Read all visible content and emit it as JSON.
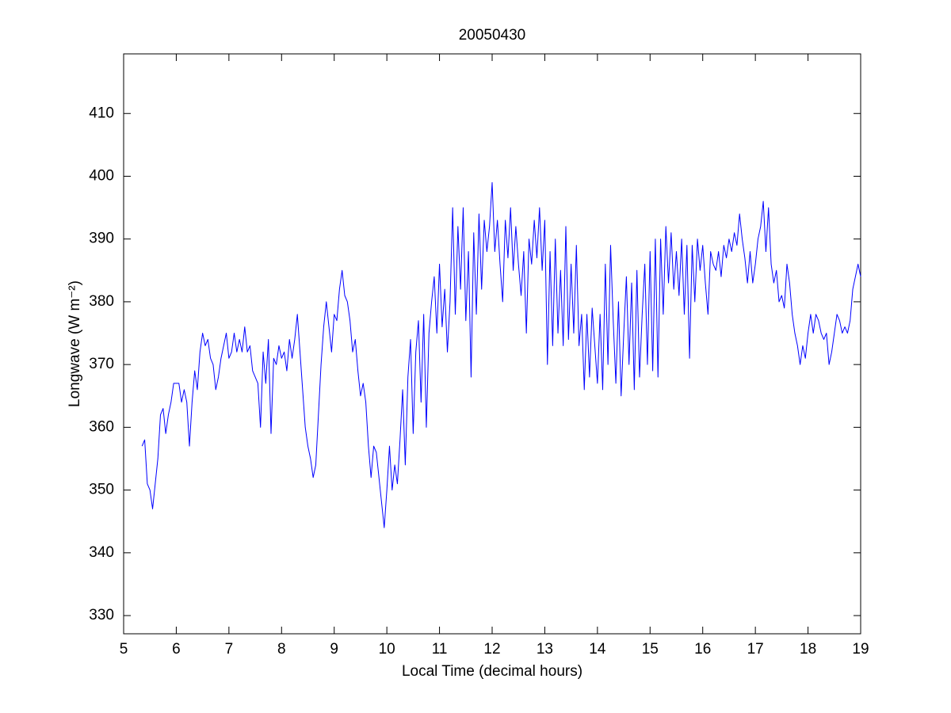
{
  "chart_data": {
    "type": "line",
    "title": "20050430",
    "xlabel": "Local Time (decimal hours)",
    "ylabel": "Longwave (W m⁻²)",
    "xlim": [
      5,
      19
    ],
    "ylim": [
      327.1,
      419.5
    ],
    "xticks": [
      5,
      6,
      7,
      8,
      9,
      10,
      11,
      12,
      13,
      14,
      15,
      16,
      17,
      18,
      19
    ],
    "yticks": [
      330,
      340,
      350,
      360,
      370,
      380,
      390,
      400,
      410
    ],
    "grid": false,
    "x": [
      5.35,
      5.4,
      5.45,
      5.5,
      5.55,
      5.6,
      5.65,
      5.7,
      5.75,
      5.8,
      5.85,
      5.9,
      5.95,
      6,
      6.05,
      6.1,
      6.15,
      6.2,
      6.25,
      6.3,
      6.35,
      6.4,
      6.45,
      6.5,
      6.55,
      6.6,
      6.65,
      6.7,
      6.75,
      6.8,
      6.85,
      6.9,
      6.95,
      7,
      7.05,
      7.1,
      7.15,
      7.2,
      7.25,
      7.3,
      7.35,
      7.4,
      7.45,
      7.5,
      7.55,
      7.6,
      7.65,
      7.7,
      7.75,
      7.8,
      7.85,
      7.9,
      7.95,
      8,
      8.05,
      8.1,
      8.15,
      8.2,
      8.25,
      8.3,
      8.35,
      8.4,
      8.45,
      8.5,
      8.55,
      8.6,
      8.65,
      8.7,
      8.75,
      8.8,
      8.85,
      8.9,
      8.95,
      9,
      9.05,
      9.1,
      9.15,
      9.2,
      9.25,
      9.3,
      9.35,
      9.4,
      9.45,
      9.5,
      9.55,
      9.6,
      9.65,
      9.7,
      9.75,
      9.8,
      9.85,
      9.9,
      9.95,
      10,
      10.05,
      10.1,
      10.15,
      10.2,
      10.25,
      10.3,
      10.35,
      10.4,
      10.45,
      10.5,
      10.55,
      10.6,
      10.65,
      10.7,
      10.75,
      10.8,
      10.85,
      10.9,
      10.95,
      11,
      11.05,
      11.1,
      11.15,
      11.2,
      11.25,
      11.3,
      11.35,
      11.4,
      11.45,
      11.5,
      11.55,
      11.6,
      11.65,
      11.7,
      11.75,
      11.8,
      11.85,
      11.9,
      11.95,
      12,
      12.05,
      12.1,
      12.15,
      12.2,
      12.25,
      12.3,
      12.35,
      12.4,
      12.45,
      12.5,
      12.55,
      12.6,
      12.65,
      12.7,
      12.75,
      12.8,
      12.85,
      12.9,
      12.95,
      13,
      13.05,
      13.1,
      13.15,
      13.2,
      13.25,
      13.3,
      13.35,
      13.4,
      13.45,
      13.5,
      13.55,
      13.6,
      13.65,
      13.7,
      13.75,
      13.8,
      13.85,
      13.9,
      13.95,
      14,
      14.05,
      14.1,
      14.15,
      14.2,
      14.25,
      14.3,
      14.35,
      14.4,
      14.45,
      14.5,
      14.55,
      14.6,
      14.65,
      14.7,
      14.75,
      14.8,
      14.85,
      14.9,
      14.95,
      15,
      15.05,
      15.1,
      15.15,
      15.2,
      15.25,
      15.3,
      15.35,
      15.4,
      15.45,
      15.5,
      15.55,
      15.6,
      15.65,
      15.7,
      15.75,
      15.8,
      15.85,
      15.9,
      15.95,
      16,
      16.05,
      16.1,
      16.15,
      16.2,
      16.25,
      16.3,
      16.35,
      16.4,
      16.45,
      16.5,
      16.55,
      16.6,
      16.65,
      16.7,
      16.75,
      16.8,
      16.85,
      16.9,
      16.95,
      17,
      17.05,
      17.1,
      17.15,
      17.2,
      17.25,
      17.3,
      17.35,
      17.4,
      17.45,
      17.5,
      17.55,
      17.6,
      17.65,
      17.7,
      17.75,
      17.8,
      17.85,
      17.9,
      17.95,
      18,
      18.05,
      18.1,
      18.15,
      18.2,
      18.25,
      18.3,
      18.35,
      18.4,
      18.45,
      18.5,
      18.55,
      18.6,
      18.65,
      18.7,
      18.75,
      18.8,
      18.85,
      18.9,
      18.95,
      19
    ],
    "series": [
      {
        "color": "#0000ff",
        "values": [
          357,
          358,
          351,
          350,
          347,
          351,
          355,
          362,
          363,
          359,
          362,
          364,
          367,
          367,
          367,
          364,
          366,
          364,
          357,
          364,
          369,
          366,
          372,
          375,
          373,
          374,
          371,
          370,
          366,
          368,
          371,
          373,
          375,
          371,
          372,
          375,
          372,
          374,
          372,
          376,
          372,
          373,
          369,
          368,
          367,
          360,
          372,
          367,
          374,
          359,
          371,
          370,
          373,
          371,
          372,
          369,
          374,
          371,
          374,
          378,
          372,
          366,
          360,
          357,
          355,
          352,
          354,
          362,
          370,
          376,
          380,
          376,
          372,
          378,
          377,
          382,
          385,
          381,
          380,
          377,
          372,
          374,
          369,
          365,
          367,
          364,
          357,
          352,
          357,
          356,
          352,
          348,
          344,
          350,
          357,
          350,
          354,
          351,
          358,
          366,
          354,
          368,
          374,
          359,
          372,
          377,
          364,
          378,
          360,
          375,
          380,
          384,
          375,
          386,
          376,
          382,
          372,
          380,
          395,
          378,
          392,
          382,
          395,
          377,
          388,
          368,
          391,
          378,
          394,
          382,
          393,
          388,
          392,
          399,
          388,
          393,
          386,
          380,
          393,
          387,
          395,
          385,
          392,
          386,
          381,
          388,
          375,
          390,
          386,
          393,
          387,
          395,
          385,
          393,
          370,
          388,
          373,
          390,
          375,
          385,
          373,
          392,
          374,
          386,
          375,
          389,
          373,
          378,
          366,
          378,
          368,
          379,
          373,
          367,
          378,
          366,
          386,
          370,
          389,
          377,
          367,
          380,
          365,
          375,
          384,
          370,
          383,
          366,
          385,
          368,
          378,
          386,
          370,
          388,
          369,
          390,
          368,
          390,
          378,
          392,
          383,
          391,
          382,
          388,
          381,
          390,
          378,
          389,
          371,
          389,
          380,
          390,
          385,
          389,
          383,
          378,
          388,
          386,
          385,
          388,
          384,
          389,
          387,
          390,
          388,
          391,
          389,
          394,
          390,
          387,
          383,
          388,
          383,
          386,
          390,
          392,
          396,
          388,
          395,
          386,
          383,
          385,
          380,
          381,
          379,
          386,
          383,
          378,
          375,
          373,
          370,
          373,
          371,
          375,
          378,
          375,
          378,
          377,
          375,
          374,
          375,
          370,
          372,
          375,
          378,
          377,
          375,
          376,
          375,
          377,
          382,
          384,
          386,
          384
        ]
      }
    ]
  }
}
